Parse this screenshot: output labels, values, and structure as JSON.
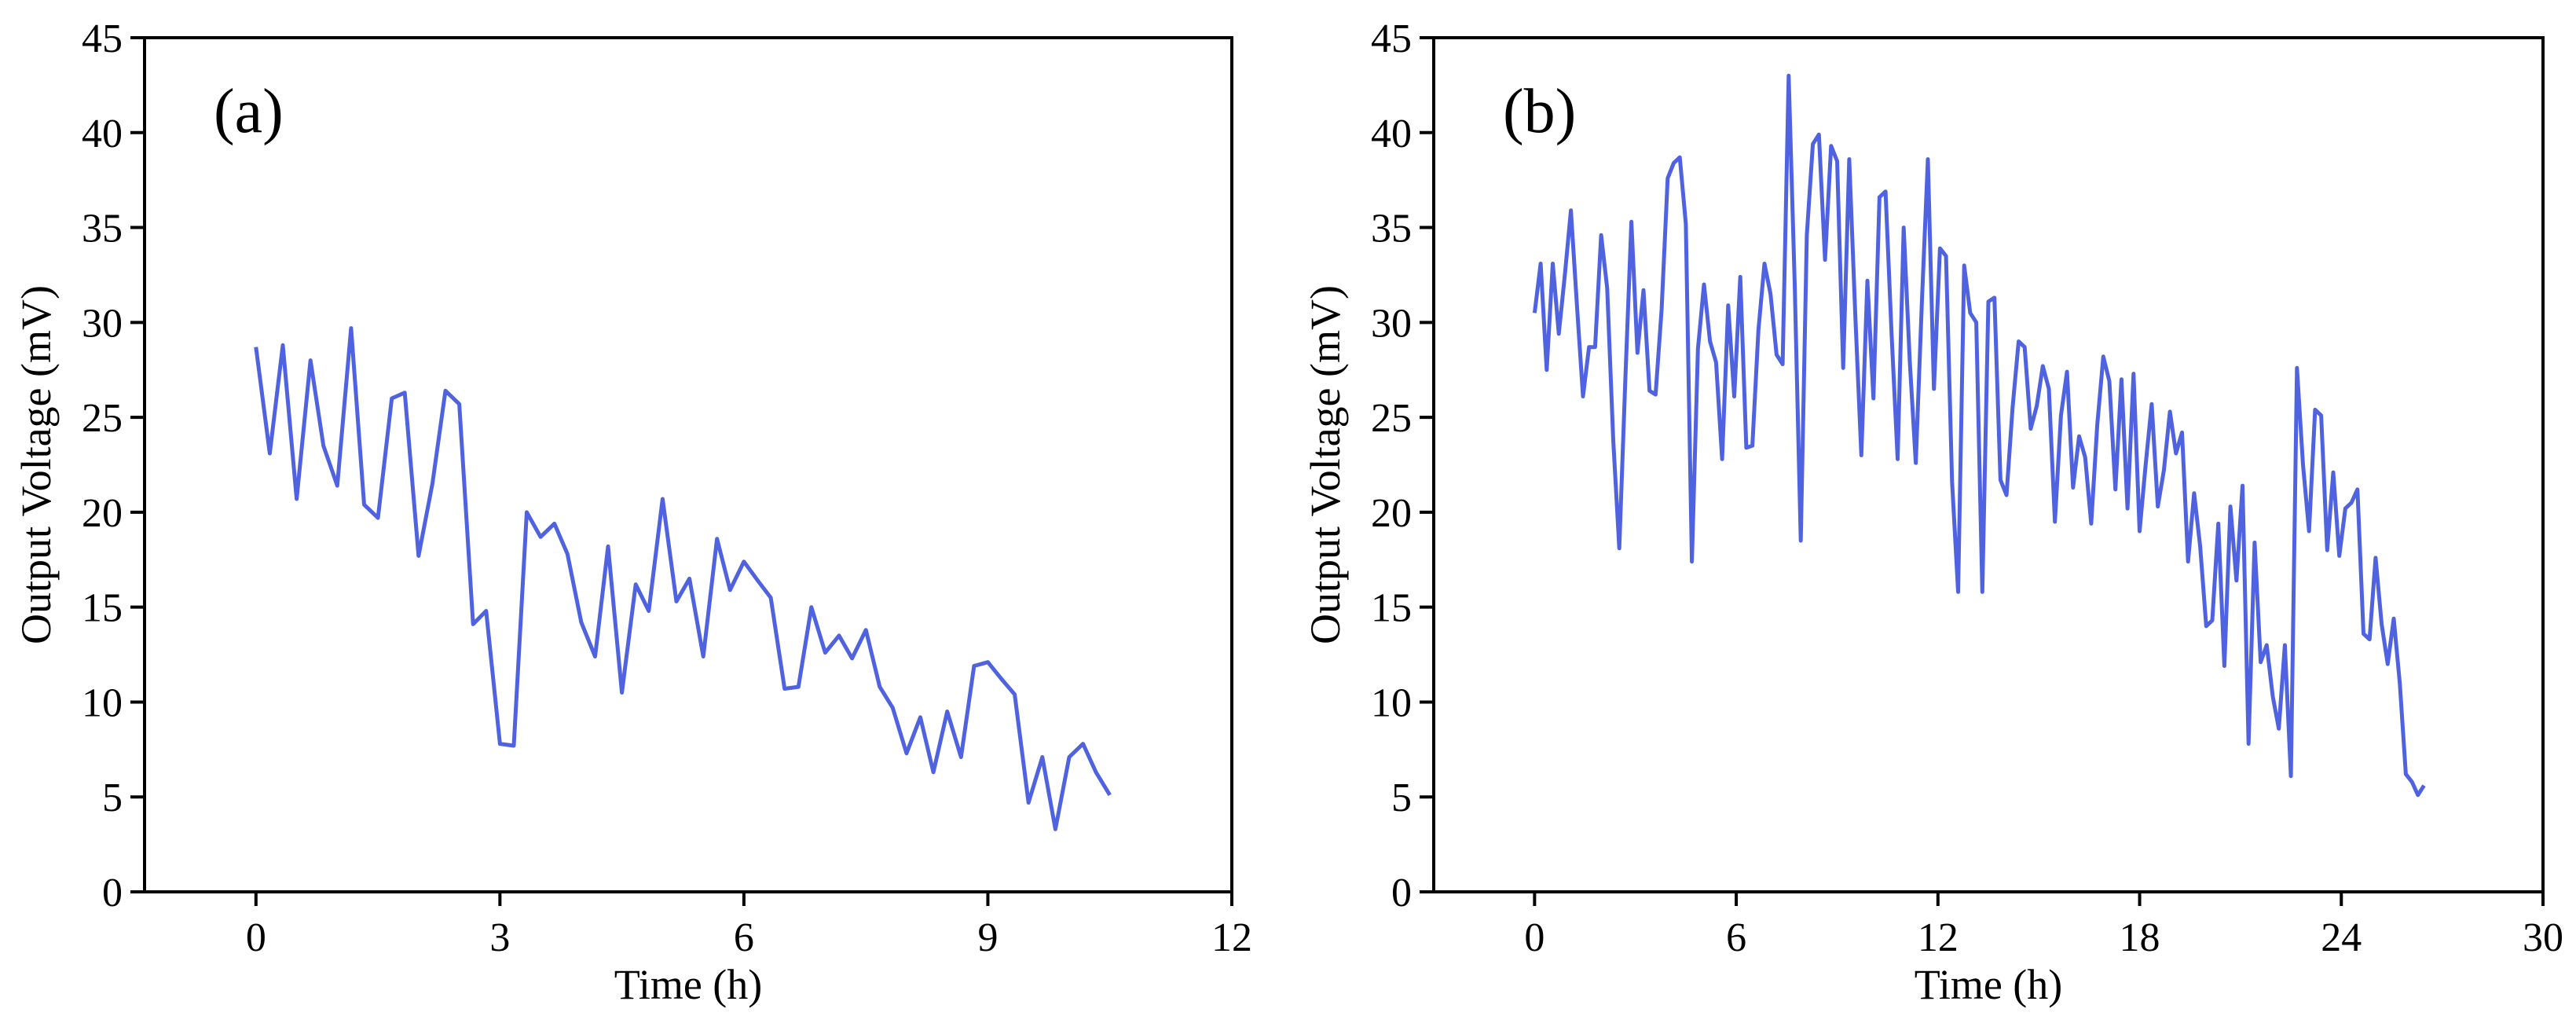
{
  "chart_data": [
    {
      "type": "line",
      "title": "(a)",
      "xlabel": "Time (h)",
      "ylabel": "Output Voltage (mV)",
      "xlim": [
        -1.37,
        12
      ],
      "ylim": [
        0,
        45
      ],
      "xticks": [
        0,
        3,
        6,
        9,
        12
      ],
      "yticks": [
        0,
        5,
        10,
        15,
        20,
        25,
        30,
        35,
        40,
        45
      ],
      "x": [
        0,
        0.17,
        0.33,
        0.5,
        0.67,
        0.83,
        1,
        1.17,
        1.33,
        1.5,
        1.67,
        1.83,
        2,
        2.17,
        2.33,
        2.5,
        2.67,
        2.83,
        3,
        3.17,
        3.33,
        3.5,
        3.67,
        3.83,
        4,
        4.17,
        4.33,
        4.5,
        4.67,
        4.83,
        5,
        5.17,
        5.33,
        5.5,
        5.67,
        5.83,
        6,
        6.17,
        6.33,
        6.5,
        6.67,
        6.83,
        7,
        7.17,
        7.33,
        7.5,
        7.67,
        7.83,
        8,
        8.17,
        8.33,
        8.5,
        8.67,
        8.83,
        9,
        9.17,
        9.33,
        9.5,
        9.67,
        9.83,
        10,
        10.17,
        10.33,
        10.5
      ],
      "series": [
        {
          "color": "#4f63e0",
          "values": [
            28.7,
            23.1,
            28.8,
            20.7,
            28.0,
            23.5,
            21.4,
            29.7,
            20.4,
            19.7,
            26.0,
            26.3,
            17.7,
            21.5,
            26.4,
            25.7,
            14.1,
            14.8,
            7.8,
            7.7,
            20.0,
            18.7,
            19.4,
            17.8,
            14.2,
            12.4,
            18.2,
            10.5,
            16.2,
            14.8,
            20.7,
            15.3,
            16.5,
            12.4,
            18.6,
            15.9,
            17.4,
            16.4,
            15.5,
            10.7,
            10.8,
            15.0,
            12.6,
            13.5,
            12.3,
            13.8,
            10.8,
            9.7,
            7.3,
            9.2,
            6.3,
            9.5,
            7.1,
            11.9,
            12.1,
            11.2,
            10.4,
            4.7,
            7.1,
            3.3,
            7.1,
            7.8,
            6.3,
            5.1
          ]
        }
      ]
    },
    {
      "type": "line",
      "title": "(b)",
      "xlabel": "Time (h)",
      "ylabel": "Output Voltage (mV)",
      "xlim": [
        -3,
        30
      ],
      "ylim": [
        0,
        45
      ],
      "xticks": [
        0,
        6,
        12,
        18,
        24,
        30
      ],
      "yticks": [
        0,
        5,
        10,
        15,
        20,
        25,
        30,
        35,
        40,
        45
      ],
      "x": [
        0,
        0.18,
        0.36,
        0.54,
        0.72,
        0.9,
        1.08,
        1.26,
        1.44,
        1.62,
        1.8,
        1.98,
        2.16,
        2.34,
        2.52,
        2.7,
        2.88,
        3.06,
        3.24,
        3.42,
        3.6,
        3.78,
        3.96,
        4.14,
        4.32,
        4.5,
        4.68,
        4.86,
        5.04,
        5.22,
        5.4,
        5.58,
        5.76,
        5.94,
        6.12,
        6.3,
        6.48,
        6.66,
        6.84,
        7.02,
        7.2,
        7.38,
        7.56,
        7.74,
        7.92,
        8.1,
        8.28,
        8.46,
        8.64,
        8.82,
        9,
        9.18,
        9.36,
        9.54,
        9.72,
        9.9,
        10.08,
        10.26,
        10.44,
        10.62,
        10.8,
        10.98,
        11.16,
        11.34,
        11.52,
        11.7,
        11.88,
        12.06,
        12.24,
        12.42,
        12.6,
        12.78,
        12.96,
        13.14,
        13.32,
        13.5,
        13.68,
        13.86,
        14.04,
        14.22,
        14.4,
        14.58,
        14.76,
        14.94,
        15.12,
        15.3,
        15.48,
        15.66,
        15.84,
        16.02,
        16.2,
        16.38,
        16.56,
        16.74,
        16.92,
        17.1,
        17.28,
        17.46,
        17.64,
        17.82,
        18,
        18.18,
        18.36,
        18.54,
        18.72,
        18.9,
        19.08,
        19.26,
        19.44,
        19.62,
        19.8,
        19.98,
        20.16,
        20.34,
        20.52,
        20.7,
        20.88,
        21.06,
        21.24,
        21.42,
        21.6,
        21.78,
        21.96,
        22.14,
        22.32,
        22.5,
        22.68,
        22.86,
        23.04,
        23.22,
        23.4,
        23.58,
        23.76,
        23.94,
        24.12,
        24.3,
        24.48,
        24.66,
        24.84,
        25.02,
        25.2,
        25.38,
        25.56,
        25.74,
        25.92,
        26.1,
        26.28,
        26.46
      ],
      "series": [
        {
          "color": "#4f63e0",
          "values": [
            30.5,
            33.1,
            27.5,
            33.1,
            29.4,
            32.5,
            35.9,
            30.9,
            26.1,
            28.7,
            28.7,
            34.6,
            31.8,
            23.8,
            18.1,
            27.0,
            35.3,
            28.4,
            31.7,
            26.4,
            26.2,
            30.7,
            37.6,
            38.4,
            38.7,
            35.2,
            17.4,
            28.6,
            32.0,
            29.0,
            27.9,
            22.8,
            30.9,
            26.1,
            32.4,
            23.4,
            23.5,
            29.6,
            33.1,
            31.5,
            28.3,
            27.8,
            43.0,
            32.0,
            18.5,
            34.6,
            39.4,
            39.9,
            33.3,
            39.3,
            38.5,
            27.6,
            38.6,
            30.4,
            23.0,
            32.2,
            26.0,
            36.6,
            36.9,
            29.4,
            22.8,
            35.0,
            28.0,
            22.6,
            31.0,
            38.6,
            26.5,
            33.9,
            33.5,
            21.6,
            15.8,
            33.0,
            30.5,
            30.0,
            15.8,
            31.1,
            31.3,
            21.7,
            20.9,
            25.5,
            29.0,
            28.7,
            24.4,
            25.6,
            27.7,
            26.5,
            19.5,
            25.1,
            27.4,
            21.3,
            24.0,
            22.9,
            19.4,
            24.6,
            28.2,
            26.9,
            21.2,
            27.0,
            20.2,
            27.3,
            19.0,
            22.5,
            25.7,
            20.3,
            22.2,
            25.3,
            23.1,
            24.2,
            17.4,
            21.0,
            18.2,
            14.0,
            14.3,
            19.4,
            11.9,
            20.3,
            16.4,
            21.4,
            7.8,
            18.4,
            12.1,
            13.0,
            10.3,
            8.6,
            13.0,
            6.1,
            27.6,
            22.5,
            19.0,
            25.4,
            25.1,
            18.0,
            22.1,
            17.7,
            20.2,
            20.5,
            21.2,
            13.6,
            13.3,
            17.6,
            14.1,
            12.0,
            14.4,
            11.0,
            6.2,
            5.8,
            5.1,
            5.6
          ]
        }
      ]
    }
  ]
}
